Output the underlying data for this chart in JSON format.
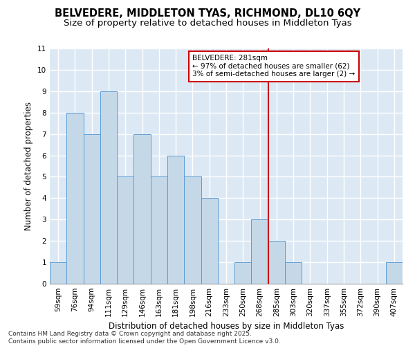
{
  "title_line1": "BELVEDERE, MIDDLETON TYAS, RICHMOND, DL10 6QY",
  "title_line2": "Size of property relative to detached houses in Middleton Tyas",
  "xlabel": "Distribution of detached houses by size in Middleton Tyas",
  "ylabel": "Number of detached properties",
  "categories": [
    "59sqm",
    "76sqm",
    "94sqm",
    "111sqm",
    "129sqm",
    "146sqm",
    "163sqm",
    "181sqm",
    "198sqm",
    "216sqm",
    "233sqm",
    "250sqm",
    "268sqm",
    "285sqm",
    "303sqm",
    "320sqm",
    "337sqm",
    "355sqm",
    "372sqm",
    "390sqm",
    "407sqm"
  ],
  "values": [
    1,
    8,
    7,
    9,
    5,
    7,
    5,
    6,
    5,
    4,
    0,
    1,
    3,
    2,
    1,
    0,
    0,
    0,
    0,
    0,
    1
  ],
  "bar_color": "#c5d8e8",
  "bar_edge_color": "#5b9bd5",
  "vertical_line_index": 13,
  "vertical_line_color": "#cc0000",
  "annotation_text": "BELVEDERE: 281sqm\n← 97% of detached houses are smaller (62)\n3% of semi-detached houses are larger (2) →",
  "annotation_box_color": "#cc0000",
  "ylim": [
    0,
    11
  ],
  "yticks": [
    0,
    1,
    2,
    3,
    4,
    5,
    6,
    7,
    8,
    9,
    10,
    11
  ],
  "bg_color": "#dce9f5",
  "grid_color": "#ffffff",
  "footer_line1": "Contains HM Land Registry data © Crown copyright and database right 2025.",
  "footer_line2": "Contains public sector information licensed under the Open Government Licence v3.0.",
  "title_fontsize": 10.5,
  "subtitle_fontsize": 9.5,
  "axis_label_fontsize": 8.5,
  "tick_fontsize": 7.5,
  "annotation_fontsize": 7.5,
  "footer_fontsize": 6.5
}
